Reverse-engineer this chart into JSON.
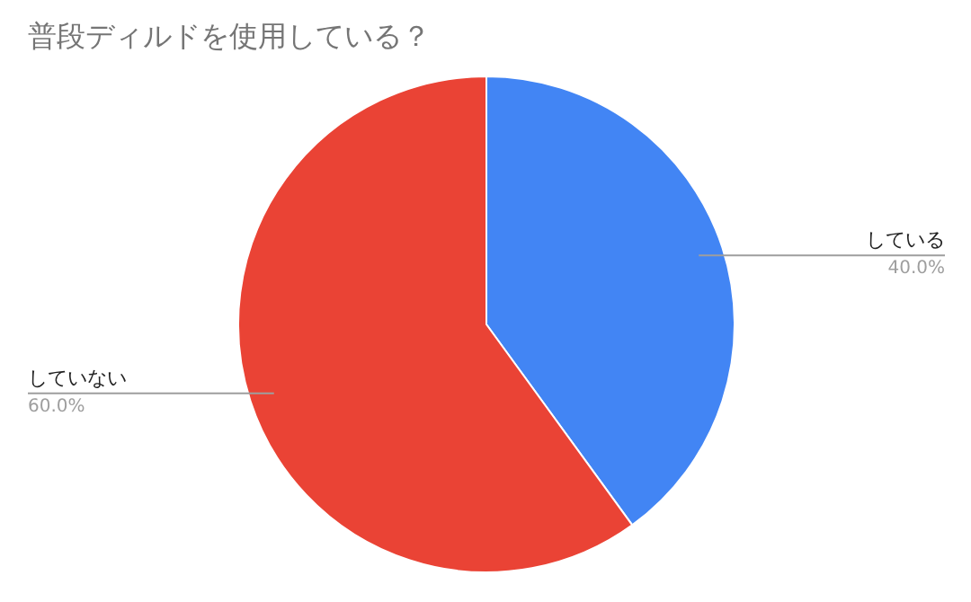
{
  "chart_data": {
    "type": "pie",
    "title": "普段ディルドを使用している？",
    "categories": [
      "している",
      "していない"
    ],
    "values": [
      40,
      60
    ],
    "colors": [
      "#4285f4",
      "#ea4335"
    ],
    "value_labels": [
      "40.0%",
      "60.0%"
    ]
  }
}
